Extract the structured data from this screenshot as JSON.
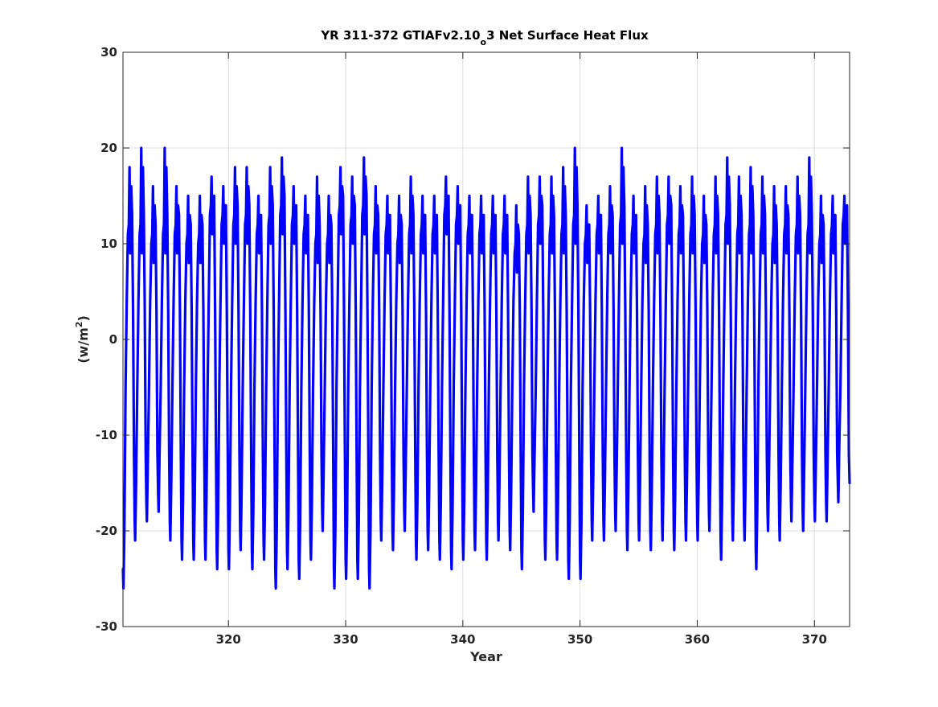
{
  "chart_data": {
    "type": "line",
    "title_main": "YR 311-372 GTIAFv2.10",
    "title_sub": "o",
    "title_tail": "3 Net Surface Heat Flux",
    "xlabel": "Year",
    "ylabel_main": "(w/m",
    "ylabel_sup": "2",
    "ylabel_tail": ")",
    "xlim": [
      311,
      373
    ],
    "ylim": [
      -30,
      30
    ],
    "x_ticks": [
      320,
      330,
      340,
      350,
      360,
      370
    ],
    "y_ticks": [
      -30,
      -20,
      -10,
      0,
      10,
      20,
      30
    ],
    "x_tick_labels": [
      "320",
      "330",
      "340",
      "350",
      "360",
      "370"
    ],
    "y_tick_labels": [
      "-30",
      "-20",
      "-10",
      "0",
      "10",
      "20",
      "30"
    ],
    "grid": true,
    "line_color": "#0000ff",
    "series": [
      {
        "start_year": 311,
        "months_per_year": 12,
        "annual_min": [
          -26,
          -21,
          -19,
          -18,
          -21,
          -23,
          -23,
          -23,
          -24,
          -24,
          -22,
          -24,
          -23,
          -26,
          -24,
          -25,
          -23,
          -20,
          -26,
          -25,
          -25,
          -26,
          -21,
          -22,
          -20,
          -23,
          -22,
          -23,
          -24,
          -23,
          -22,
          -23,
          -21,
          -22,
          -24,
          -18,
          -23,
          -23,
          -25,
          -25,
          -21,
          -21,
          -20,
          -22,
          -21,
          -22,
          -21,
          -22,
          -21,
          -21,
          -20,
          -23,
          -21,
          -21,
          -24,
          -20,
          -21,
          -19,
          -20,
          -19,
          -19,
          -17
        ],
        "annual_max": [
          18,
          20,
          16,
          20,
          16,
          15,
          15,
          17,
          16,
          18,
          18,
          15,
          18,
          19,
          16,
          15,
          17,
          15,
          18,
          17,
          19,
          16,
          15,
          15,
          17,
          15,
          15,
          17,
          16,
          15,
          15,
          15,
          15,
          14,
          17,
          17,
          17,
          18,
          20,
          14,
          15,
          16,
          20,
          15,
          16,
          17,
          17,
          16,
          17,
          15,
          17,
          19,
          17,
          18,
          17,
          16,
          16,
          17,
          19,
          15,
          15,
          15
        ],
        "annual_shoulder": [
          12,
          12,
          11,
          12,
          12,
          11,
          11,
          14,
          13,
          13,
          13,
          12,
          13,
          14,
          13,
          12,
          11,
          11,
          14,
          13,
          14,
          12,
          12,
          11,
          12,
          12,
          12,
          14,
          13,
          12,
          12,
          12,
          12,
          10,
          12,
          13,
          12,
          12,
          13,
          11,
          12,
          12,
          13,
          12,
          11,
          12,
          13,
          12,
          12,
          11,
          12,
          13,
          12,
          12,
          12,
          11,
          12,
          12,
          12,
          11,
          12,
          13
        ]
      }
    ]
  }
}
